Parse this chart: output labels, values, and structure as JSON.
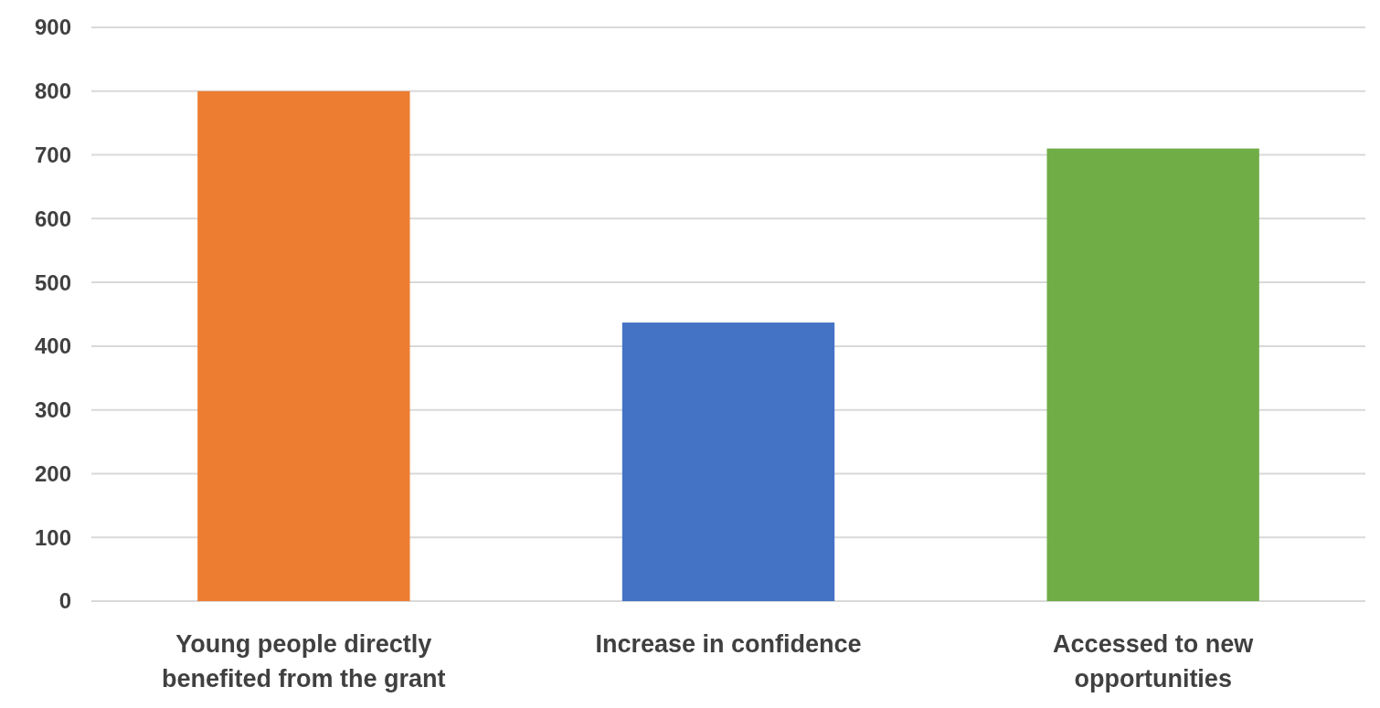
{
  "chart_data": {
    "type": "bar",
    "categories": [
      "Young people directly benefited from the grant",
      "Increase in confidence",
      "Accessed to new opportunities"
    ],
    "values": [
      800,
      437,
      710
    ],
    "colors": [
      "#ed7d31",
      "#4472c4",
      "#70ad47"
    ],
    "ylim": [
      0,
      900
    ],
    "yticks": [
      0,
      100,
      200,
      300,
      400,
      500,
      600,
      700,
      800,
      900
    ],
    "grid": "y"
  }
}
